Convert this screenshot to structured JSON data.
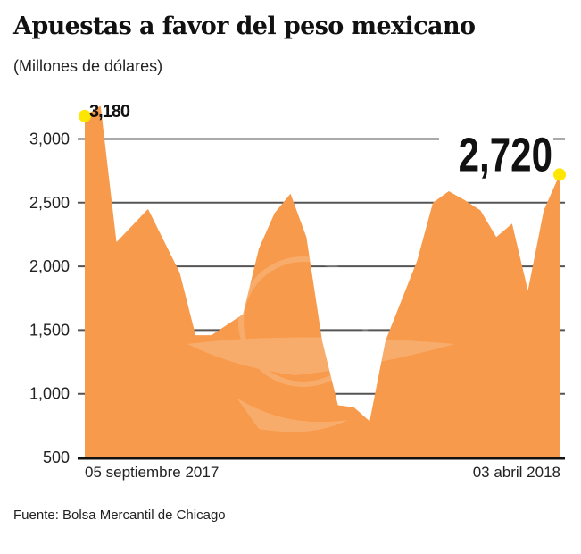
{
  "title": "Apuestas a favor del peso mexicano",
  "subtitle": "(Millones de dólares)",
  "source": "Fuente: Bolsa Mercantil de Chicago",
  "colors": {
    "area": "#F79A4B",
    "highlight": "#FFE600",
    "grid": "#555555"
  },
  "chart_data": {
    "type": "area",
    "ylim": [
      500,
      3300
    ],
    "yticks": [
      500,
      1000,
      1500,
      2000,
      2500,
      3000
    ],
    "ytick_labels": [
      "500",
      "1,000",
      "1,500",
      "2,000",
      "2,500",
      "3,000"
    ],
    "xtick_labels": [
      "05 septiembre 2017",
      "03 abril 2018"
    ],
    "grid": true,
    "x": [
      "2017-09-05",
      "2017-09-12",
      "2017-09-19",
      "2017-10-03",
      "2017-10-17",
      "2017-10-24",
      "2017-10-31",
      "2017-11-14",
      "2017-11-21",
      "2017-11-28",
      "2017-12-05",
      "2017-12-12",
      "2017-12-19",
      "2017-12-26",
      "2018-01-02",
      "2018-01-09",
      "2018-01-16",
      "2018-01-30",
      "2018-02-06",
      "2018-02-13",
      "2018-02-20",
      "2018-02-27",
      "2018-03-06",
      "2018-03-13",
      "2018-03-20",
      "2018-03-27",
      "2018-04-03"
    ],
    "values": [
      3180,
      3260,
      2190,
      2450,
      1950,
      1460,
      1460,
      1625,
      2140,
      2420,
      2570,
      2230,
      1415,
      910,
      895,
      785,
      1415,
      2045,
      2500,
      2590,
      2520,
      2440,
      2230,
      2335,
      1810,
      2440,
      2720
    ],
    "annotations": [
      {
        "x": "2017-09-05",
        "value": 3180,
        "label": "3,180"
      },
      {
        "x": "2018-04-03",
        "value": 2720,
        "label": "2,720"
      }
    ]
  }
}
